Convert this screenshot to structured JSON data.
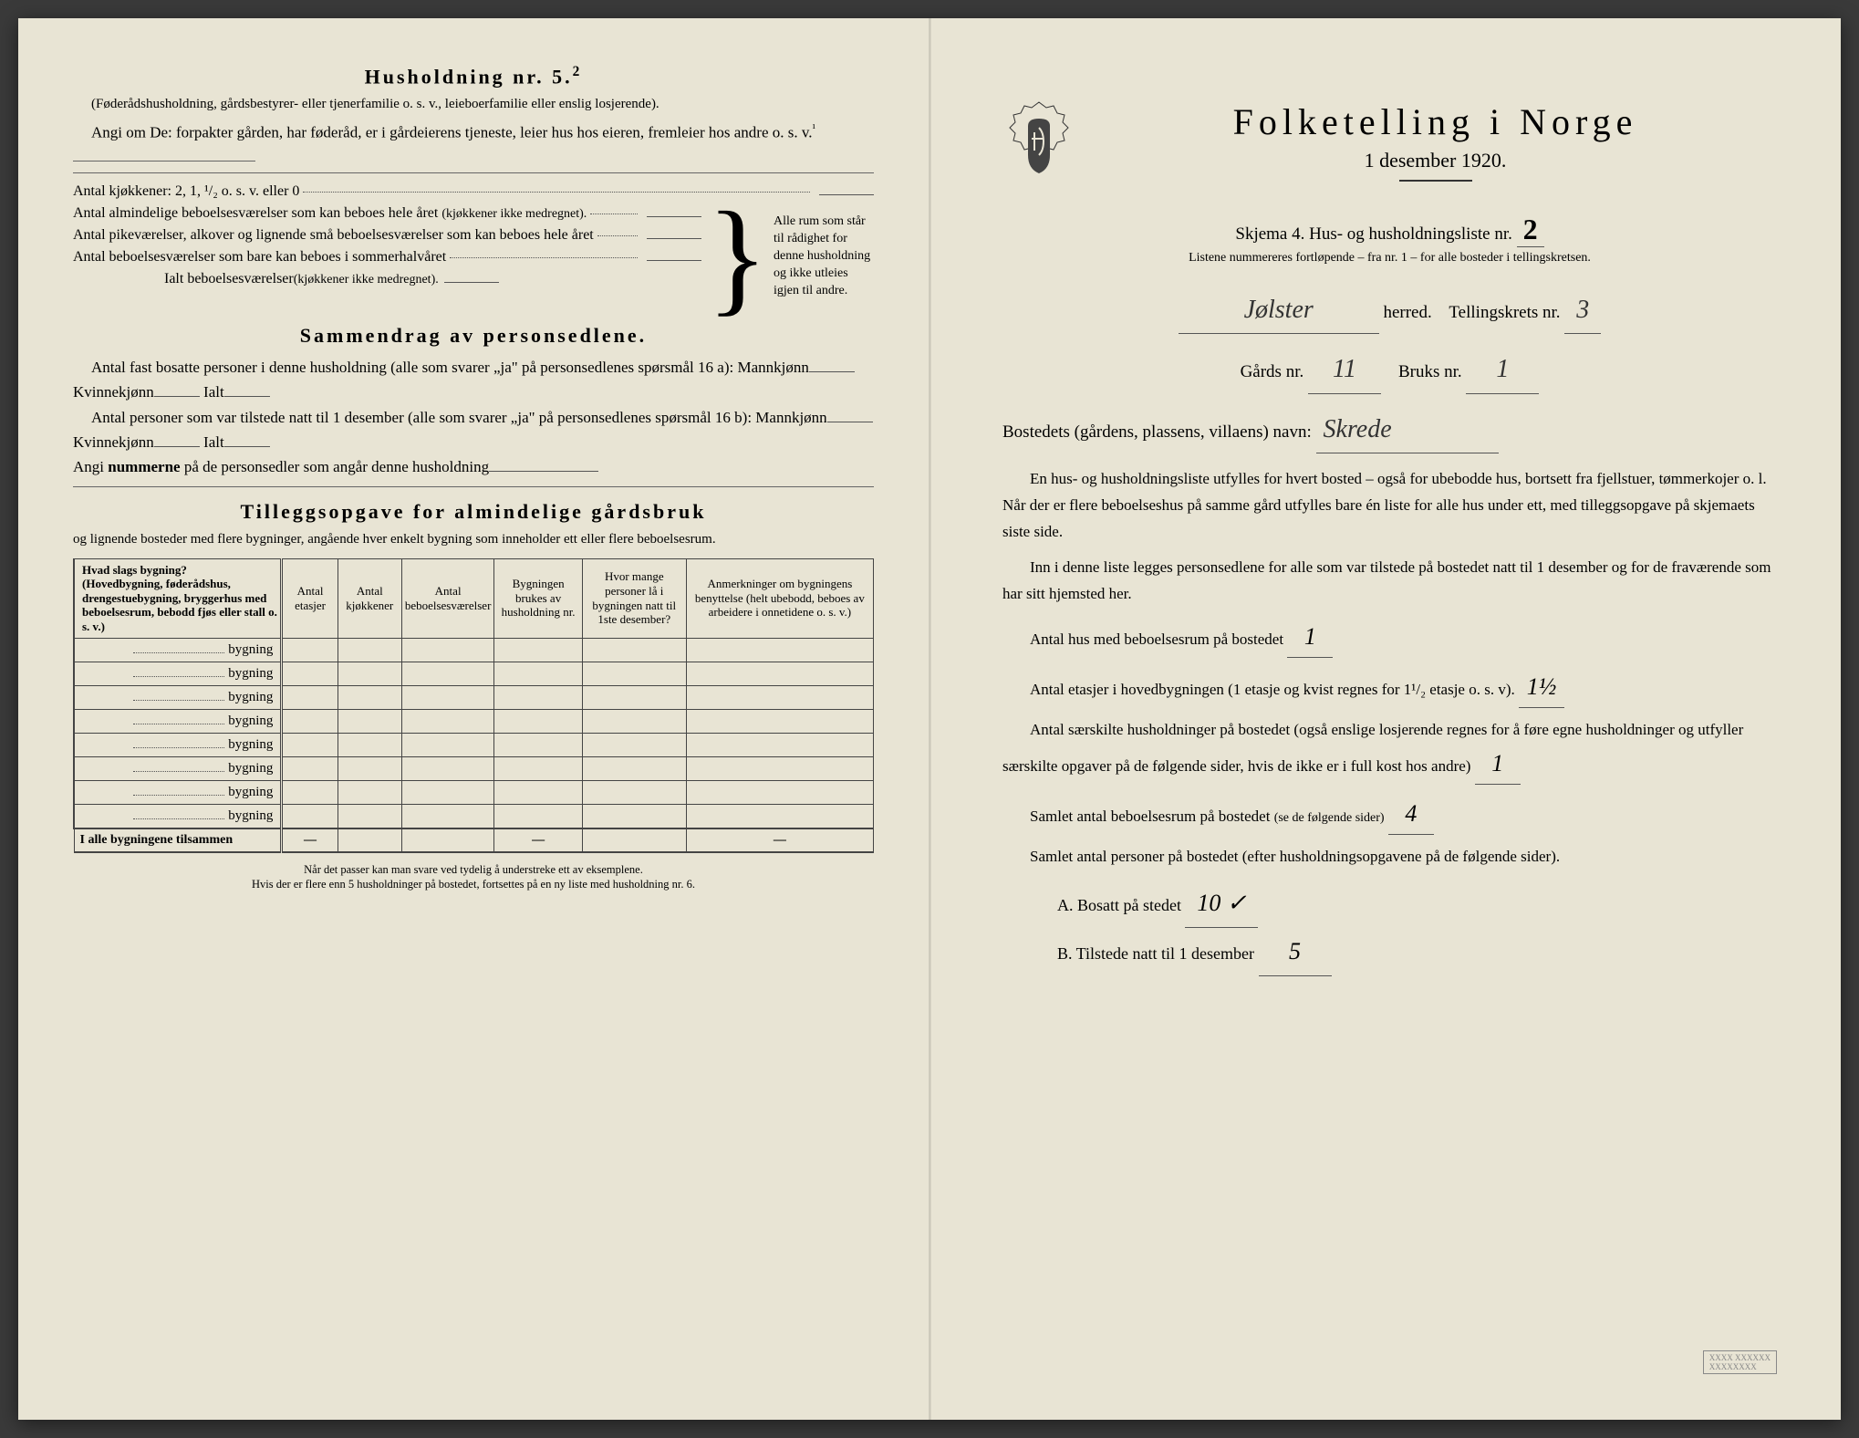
{
  "left": {
    "h5_title": "Husholdning nr. 5.",
    "h5_sup": "2",
    "h5_desc": "(Føderådshusholdning, gårdsbestyrer- eller tjenerfamilie o. s. v., leieboerfamilie eller enslig losjerende).",
    "h5_angi": "Angi om De: forpakter gården, har føderåd, er i gårdeierens tjeneste, leier hus hos eieren, fremleier hos andre o. s. v.",
    "kitchen_label": "Antal kjøkkener: 2, 1, ¹/₂ o. s. v. eller 0",
    "room1": "Antal almindelige beboelsesværelser som kan beboes hele året",
    "room1_note": "(kjøkkener ikke medregnet).",
    "room2": "Antal pikeværelser, alkover og lignende små beboelsesværelser som kan beboes hele året",
    "room3": "Antal beboelsesværelser som bare kan beboes i sommerhalvåret",
    "room_total": "Ialt beboelsesværelser",
    "room_total_note": "(kjøkkener ikke medregnet).",
    "brace_text": "Alle rum som står til rådighet for denne husholdning og ikke utleies igjen til andre.",
    "summary_title": "Sammendrag av personsedlene.",
    "summary_p1a": "Antal fast bosatte personer i denne husholdning (alle som svarer „ja\" på personsedlenes spørsmål 16 a): Mannkjønn",
    "summary_kv": "Kvinnekjønn",
    "summary_ialt": "Ialt",
    "summary_p2a": "Antal personer som var tilstede natt til 1 desember (alle som svarer „ja\" på personsedlenes spørsmål 16 b): Mannkjønn",
    "summary_angi": "Angi",
    "summary_angi2": "nummerne",
    "summary_angi3": "på de personsedler som angår denne husholdning",
    "tillegg_title": "Tilleggsopgave for almindelige gårdsbruk",
    "tillegg_desc": "og lignende bosteder med flere bygninger, angående hver enkelt bygning som inneholder ett eller flere beboelsesrum.",
    "table": {
      "headers": [
        "Hvad slags bygning?\n(Hovedbygning, føderådshus, drengestuebygning, bryggerhus med beboelsesrum, bebodd fjøs eller stall o. s. v.)",
        "Antal etasjer",
        "Antal kjøkkener",
        "Antal beboelsesværelser",
        "Bygningen brukes av husholdning nr.",
        "Hvor mange personer lå i bygningen natt til 1ste desember?",
        "Anmerkninger om bygningens benyttelse (helt ubebodd, beboes av arbeidere i onnetidene o. s. v.)"
      ],
      "row_label": "bygning",
      "row_count": 8,
      "total_label": "I alle bygningene tilsammen"
    },
    "footnote1": "Når det passer kan man svare ved tydelig å understreke ett av eksemplene.",
    "footnote2": "Hvis der er flere enn 5 husholdninger på bostedet, fortsettes på en ny liste med husholdning nr. 6."
  },
  "right": {
    "main_title": "Folketelling i Norge",
    "subtitle": "1 desember 1920.",
    "skjema_pre": "Skjema 4.  Hus- og husholdningsliste nr.",
    "skjema_nr": "2",
    "sub_note": "Listene nummereres fortløpende – fra nr. 1 – for alle bosteder i tellingskretsen.",
    "herred_val": "Jølster",
    "herred_label": "herred.",
    "krets_label": "Tellingskrets nr.",
    "krets_val": "3",
    "gards_label": "Gårds nr.",
    "gards_val": "11",
    "bruks_label": "Bruks nr.",
    "bruks_val": "1",
    "bosted_label": "Bostedets (gårdens, plassens, villaens) navn:",
    "bosted_val": "Skrede",
    "info_p1": "En hus- og husholdningsliste utfylles for hvert bosted – også for ubebodde hus, bortsett fra fjellstuer, tømmerkojer o. l.  Når der er flere beboelseshus på samme gård utfylles bare én liste for alle hus under ett, med tilleggsopgave på skjemaets siste side.",
    "info_p2": "Inn i denne liste legges personsedlene for alle som var tilstede på bostedet natt til 1 desember og for de fraværende som har sitt hjemsted her.",
    "q1": "Antal hus med beboelsesrum på bostedet",
    "q1_val": "1",
    "q2a": "Antal etasjer i hovedbygningen (1 etasje og kvist regnes for 1¹/₂ etasje o. s. v).",
    "q2_val": "1½",
    "q3": "Antal særskilte husholdninger på bostedet (også enslige losjerende regnes for å føre egne husholdninger og utfyller særskilte opgaver på de følgende sider, hvis de ikke er i full kost hos andre)",
    "q3_val": "1",
    "q4": "Samlet antal beboelsesrum på bostedet",
    "q4_note": "(se de følgende sider)",
    "q4_val": "4",
    "q5": "Samlet antal personer på bostedet (efter husholdningsopgavene på de følgende sider).",
    "qA_label": "A.  Bosatt på stedet",
    "qA_val": "10 ✓",
    "qB_label": "B.  Tilstede natt til 1 desember",
    "qB_val": "5"
  }
}
